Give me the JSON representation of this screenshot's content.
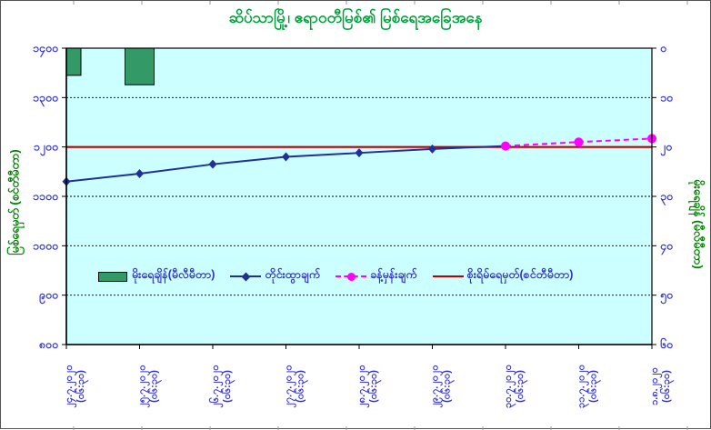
{
  "title": "ဆိပ်သာမြို့၊ ဧရာဝတီမြစ်၏ မြစ်ရေအခြေအနေ",
  "colors": {
    "title": "#00A03C",
    "axis_text": "#3333CC",
    "axis_title": "#008000",
    "plot_bg": "#CCFFFF",
    "plot_border": "#000000",
    "gridline": "#000000"
  },
  "chart_data": {
    "type": "line",
    "title": "ဆိပ်သာမြို့၊ ဧရာဝတီမြစ်၏ မြစ်ရေအခြေအနေ",
    "categories": [
      "၂၄.၇.၂၀၂၀",
      "၂၅.၇.၂၀၂၀",
      "၂၆.၇.၂၀၂၀",
      "၂၇.၇.၂၀၂၀",
      "၂၈.၇.၂၀၂၀",
      "၂၉.၇.၂၀၂၀",
      "၃၀.၇.၂၀၂၀",
      "၃၁.၇.၂၀၂၀",
      "၁.၈.၂၀၂၀"
    ],
    "x_time_label": "(၀၆:၃၀)",
    "left_axis": {
      "title": "မြစ်ရေမှတ် (စင်တီမီတာ)",
      "min": 800,
      "max": 1400,
      "tick_step": 100,
      "tick_labels": [
        "၁၄၀၀",
        "၁၃၀၀",
        "၁၂၀၀",
        "၁၁၀၀",
        "၁၀၀၀",
        "၉၀၀",
        "၈၀၀"
      ],
      "tick_values": [
        1400,
        1300,
        1200,
        1100,
        1000,
        900,
        800
      ]
    },
    "right_axis": {
      "title": "မိုးရေချိန် (မီလီမီတာ)",
      "min": 0,
      "max": 60,
      "tick_step": 10,
      "inverted": true,
      "tick_labels": [
        "၀",
        "၁၀",
        "၂၀",
        "၃၀",
        "၄၀",
        "၅၀",
        "၆၀"
      ],
      "tick_values": [
        0,
        10,
        20,
        30,
        40,
        50,
        60
      ]
    },
    "series": [
      {
        "name": "မိုးရေချိန်(မီလီမီတာ)",
        "type": "bar",
        "axis": "right",
        "color": "#339966",
        "values": [
          5.5,
          7.4,
          0,
          0,
          0,
          0,
          0,
          0,
          0
        ]
      },
      {
        "name": "တိုင်းထွာချက်",
        "type": "line",
        "axis": "left",
        "color": "#1F3099",
        "marker": "diamond",
        "values": [
          1130,
          1146,
          1165,
          1180,
          1188,
          1196,
          1202,
          null,
          null
        ]
      },
      {
        "name": "ခန့်မှန်းချက်",
        "type": "line",
        "dashed": true,
        "axis": "left",
        "color": "#FF00FF",
        "marker": "circle",
        "values": [
          null,
          null,
          null,
          null,
          null,
          null,
          1202,
          1210,
          1217
        ]
      },
      {
        "name": "စိုးရိမ်ရေမှတ်(စင်တီမီတာ)",
        "type": "hline",
        "axis": "left",
        "color": "#C00000",
        "value": 1200
      }
    ],
    "grid": "horizontal-dotted",
    "legend_position": "inside-bottom-center"
  }
}
